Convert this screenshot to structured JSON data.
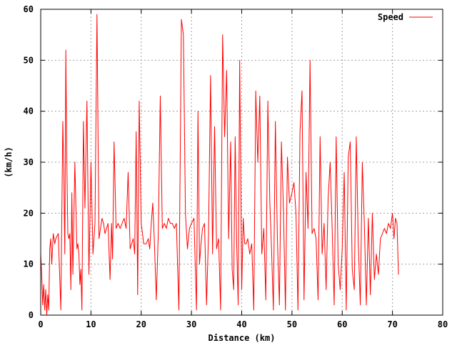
{
  "chart_data": {
    "type": "line",
    "title": "",
    "xlabel": "Distance (km)",
    "ylabel": "(km/h)",
    "xlim": [
      0,
      80
    ],
    "ylim": [
      0,
      60
    ],
    "x_ticks": [
      0,
      10,
      20,
      30,
      40,
      50,
      60,
      70,
      80
    ],
    "y_ticks": [
      0,
      10,
      20,
      30,
      40,
      50,
      60
    ],
    "grid": true,
    "legend": {
      "position": "top-right"
    },
    "series": [
      {
        "name": "Speed",
        "color": "#ff0000",
        "x": [
          0.0,
          0.2,
          0.4,
          0.6,
          0.8,
          1.0,
          1.2,
          1.4,
          1.6,
          1.8,
          2.0,
          2.2,
          2.5,
          2.8,
          3.0,
          3.5,
          4.0,
          4.4,
          4.6,
          4.8,
          5.0,
          5.2,
          5.4,
          5.6,
          5.8,
          6.0,
          6.2,
          6.4,
          6.8,
          7.2,
          7.4,
          7.6,
          7.8,
          8.0,
          8.2,
          8.5,
          8.8,
          9.2,
          9.6,
          10.0,
          10.4,
          10.8,
          11.2,
          11.6,
          11.9,
          12.2,
          12.5,
          12.8,
          13.1,
          13.4,
          13.8,
          14.1,
          14.3,
          14.6,
          15.0,
          15.4,
          15.8,
          16.2,
          16.6,
          17.0,
          17.4,
          17.8,
          18.1,
          18.4,
          18.7,
          19.0,
          19.3,
          19.6,
          20.0,
          20.5,
          21.0,
          21.4,
          21.7,
          22.0,
          22.3,
          22.6,
          23.0,
          23.4,
          23.8,
          24.2,
          24.6,
          25.0,
          25.4,
          25.8,
          26.2,
          26.6,
          27.0,
          27.5,
          28.0,
          28.4,
          28.8,
          29.2,
          29.6,
          30.0,
          30.5,
          31.0,
          31.3,
          31.6,
          31.9,
          32.2,
          32.6,
          33.0,
          33.4,
          33.8,
          34.2,
          34.6,
          35.0,
          35.4,
          35.8,
          36.2,
          36.6,
          37.0,
          37.4,
          37.8,
          38.1,
          38.4,
          38.7,
          39.0,
          39.3,
          39.6,
          40.0,
          40.3,
          40.6,
          40.9,
          41.2,
          41.6,
          42.0,
          42.4,
          42.8,
          43.2,
          43.6,
          44.0,
          44.4,
          44.8,
          45.2,
          45.6,
          45.9,
          46.3,
          46.7,
          47.1,
          47.5,
          47.9,
          48.3,
          48.7,
          49.1,
          49.5,
          50.0,
          50.4,
          50.8,
          51.2,
          51.6,
          52.0,
          52.4,
          52.8,
          53.2,
          53.6,
          54.0,
          54.4,
          54.8,
          55.2,
          55.6,
          56.0,
          56.4,
          56.8,
          57.2,
          57.6,
          58.0,
          58.4,
          58.8,
          59.2,
          59.6,
          60.0,
          60.4,
          60.8,
          61.2,
          61.6,
          62.0,
          62.4,
          62.8,
          63.2,
          63.6,
          64.0,
          64.4,
          64.8,
          65.2,
          65.6,
          66.0,
          66.4,
          66.8,
          67.2,
          67.6,
          68.0,
          68.4,
          68.8,
          69.2,
          69.6,
          70.0,
          70.3,
          70.6,
          70.9,
          71.2
        ],
        "y": [
          12,
          8,
          2,
          6,
          1,
          5,
          0,
          4,
          1,
          13,
          15,
          10,
          16,
          14,
          15,
          16,
          1,
          38,
          28,
          12,
          52,
          30,
          16,
          15,
          16,
          5,
          24,
          8,
          30,
          13,
          14,
          12,
          6,
          9,
          1,
          38,
          21,
          42,
          8,
          30,
          12,
          18,
          59,
          15,
          17,
          19,
          18,
          16,
          17,
          18,
          7,
          18,
          11,
          34,
          17,
          18,
          17,
          18,
          19,
          17,
          28,
          13,
          14,
          15,
          12,
          36,
          4,
          42,
          18,
          14,
          14,
          15,
          13,
          18,
          22,
          15,
          3,
          16,
          43,
          17,
          18,
          17,
          19,
          18,
          18,
          17,
          18,
          1,
          58,
          55,
          20,
          13,
          17,
          18,
          19,
          1,
          40,
          10,
          14,
          17,
          18,
          2,
          16,
          47,
          12,
          37,
          13,
          15,
          1,
          55,
          35,
          48,
          15,
          34,
          9,
          5,
          35,
          14,
          2,
          50,
          5,
          19,
          14,
          14,
          15,
          12,
          14,
          1,
          44,
          30,
          43,
          12,
          17,
          3,
          42,
          22,
          14,
          1,
          38,
          15,
          2,
          34,
          21,
          1,
          31,
          22,
          24,
          26,
          20,
          1,
          36,
          44,
          3,
          28,
          17,
          50,
          16,
          17,
          15,
          3,
          35,
          12,
          18,
          5,
          23,
          30,
          17,
          2,
          35,
          10,
          5,
          13,
          28,
          1,
          31,
          34,
          9,
          5,
          35,
          14,
          2,
          30,
          18,
          2,
          19,
          4,
          20,
          7,
          12,
          8,
          15,
          16,
          17,
          16,
          18,
          17,
          20,
          15,
          19,
          18,
          8
        ]
      }
    ]
  }
}
